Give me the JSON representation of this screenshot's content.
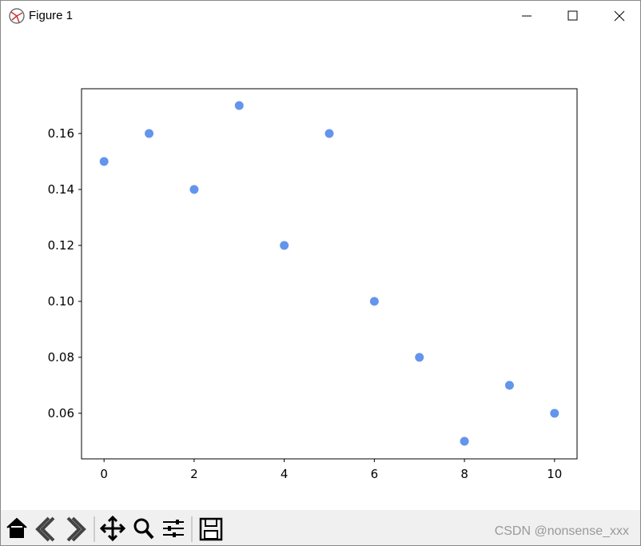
{
  "window": {
    "title": "Figure 1"
  },
  "chart_data": {
    "type": "line",
    "x": [
      0,
      1,
      2,
      3,
      4,
      5,
      6,
      7,
      8,
      9,
      10
    ],
    "values": [
      0.15,
      0.16,
      0.14,
      0.17,
      0.12,
      0.16,
      0.1,
      0.08,
      0.05,
      0.07,
      0.06
    ],
    "color": "#6495ed",
    "xlim": [
      -0.5,
      10.5
    ],
    "xticks": [
      0,
      2,
      4,
      6,
      8,
      10
    ],
    "ylim": [
      0.0437,
      0.176
    ],
    "yticks": [
      0.06,
      0.08,
      {
        "value": 0.1,
        "label": "0.10"
      },
      0.12,
      0.14,
      0.16
    ],
    "markers": true,
    "grid": false
  },
  "watermark": "CSDN @nonsense_xxx"
}
